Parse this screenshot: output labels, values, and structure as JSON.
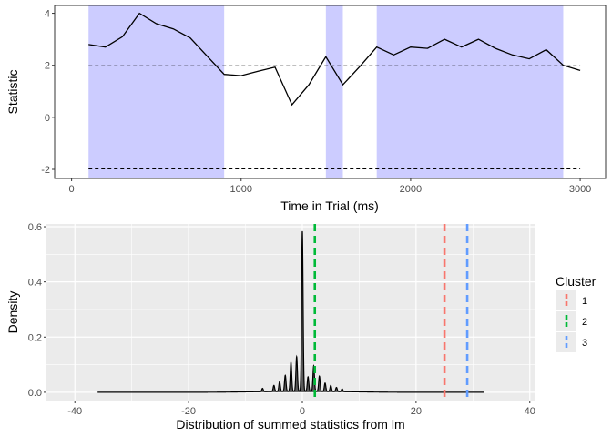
{
  "chart_data": [
    {
      "type": "line",
      "xlabel": "Time in Trial (ms)",
      "ylabel": "Statistic",
      "xlim": [
        -100,
        3150
      ],
      "ylim": [
        -2.35,
        4.3
      ],
      "x_ticks": [
        0,
        1000,
        2000,
        3000
      ],
      "y_ticks": [
        -2,
        0,
        2,
        4
      ],
      "grid": false,
      "background": "#ffffff",
      "line_color": "#000000",
      "shade_color": "#ccccff",
      "shaded_regions": [
        [
          100,
          900
        ],
        [
          1500,
          1600
        ],
        [
          1800,
          2900
        ]
      ],
      "thresholds": [
        1.98,
        -1.98
      ],
      "series": [
        {
          "x": [
            100,
            200,
            300,
            400,
            500,
            600,
            700,
            800,
            900,
            1000,
            1100,
            1200,
            1300,
            1400,
            1500,
            1600,
            1700,
            1800,
            1900,
            2000,
            2100,
            2200,
            2300,
            2400,
            2500,
            2600,
            2700,
            2800,
            2900,
            3000
          ],
          "y": [
            2.8,
            2.7,
            3.1,
            4.0,
            3.6,
            3.4,
            3.05,
            2.35,
            1.65,
            1.6,
            1.77,
            1.93,
            0.48,
            1.25,
            2.33,
            1.25,
            1.95,
            2.7,
            2.4,
            2.7,
            2.65,
            3.0,
            2.7,
            3.0,
            2.65,
            2.4,
            2.25,
            2.6,
            2.0,
            1.8
          ]
        }
      ]
    },
    {
      "type": "area",
      "xlabel": "Distribution of summed statistics from lm",
      "ylabel": "Density",
      "xlim": [
        -45,
        41
      ],
      "ylim": [
        -0.03,
        0.61
      ],
      "x_ticks": [
        -40,
        -20,
        0,
        20,
        40
      ],
      "y_ticks": [
        0.0,
        0.2,
        0.4,
        0.6
      ],
      "y_tick_labels": [
        "0.0",
        "0.2",
        "0.4",
        "0.6"
      ],
      "grid": true,
      "background": "#ebebeb",
      "fill_color": "#595959",
      "density_x_range": [
        -36,
        32
      ],
      "density_peaks": [
        {
          "x": -5,
          "height": 0.022
        },
        {
          "x": -4,
          "height": 0.035
        },
        {
          "x": -3,
          "height": 0.058
        },
        {
          "x": -2,
          "height": 0.105
        },
        {
          "x": -1,
          "height": 0.125
        },
        {
          "x": 0,
          "height": 0.58
        },
        {
          "x": 1,
          "height": 0.052
        },
        {
          "x": 2,
          "height": 0.092
        },
        {
          "x": 3,
          "height": 0.055
        },
        {
          "x": 4,
          "height": 0.03
        },
        {
          "x": 5,
          "height": 0.022
        },
        {
          "x": 6,
          "height": 0.015
        },
        {
          "x": -7,
          "height": 0.012
        },
        {
          "x": 7,
          "height": 0.01
        }
      ],
      "legend": {
        "title": "Cluster",
        "position": "right",
        "items": [
          {
            "label": "1",
            "value": 25,
            "color": "#f8766d"
          },
          {
            "label": "2",
            "value": 2.2,
            "color": "#00ba38"
          },
          {
            "label": "3",
            "value": 29,
            "color": "#619cff"
          }
        ]
      }
    }
  ]
}
